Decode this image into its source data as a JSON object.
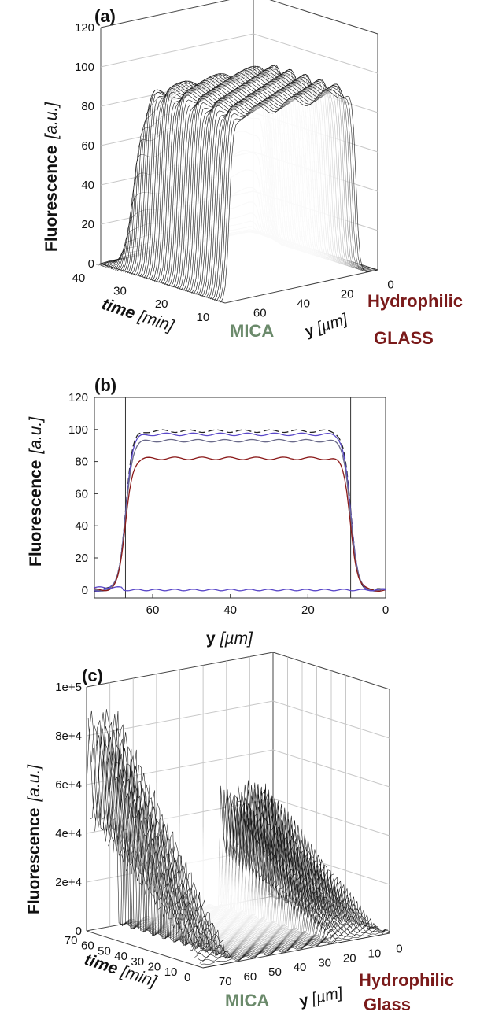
{
  "colors": {
    "glass": "#7a1a1a",
    "mica": "#6b8a6b",
    "ink": "#111111",
    "purple": "#5a48c8",
    "grid": "#b8b8b8"
  },
  "chart_data": [
    {
      "panel_label": "(a)",
      "type": "surface",
      "ylabel": "Fluorescence",
      "ylabel_unit": "[a.u.]",
      "xlabel": "time",
      "xlabel_unit": "[min]",
      "zlabel": "y",
      "zlabel_unit": "[µm]",
      "fluorescence_ticks": [
        "120",
        "100",
        "80",
        "60",
        "40",
        "20",
        "0"
      ],
      "time_ticks": [
        "40",
        "30",
        "20",
        "10"
      ],
      "y_ticks": [
        "60",
        "40",
        "20",
        "0"
      ],
      "ylim": [
        0,
        120
      ],
      "plateau_fluorescence": 97,
      "plateau_y_range_um": [
        10,
        68
      ],
      "side_labels": {
        "left": "MICA",
        "right_1": "Hydrophilic",
        "right_2": "GLASS"
      }
    },
    {
      "panel_label": "(b)",
      "type": "line",
      "ylabel": "Fluorescence",
      "ylabel_unit": "[a.u.]",
      "xlabel": "y",
      "xlabel_unit": "[µm]",
      "x_ticks": [
        "60",
        "40",
        "20",
        "0"
      ],
      "y_ticks": [
        "120",
        "100",
        "80",
        "60",
        "40",
        "20",
        "0"
      ],
      "xlim": [
        75,
        0
      ],
      "ylim": [
        -5,
        120
      ],
      "edges_um": [
        67,
        9
      ],
      "series": [
        {
          "color": "#222222",
          "dashed": true,
          "plateau": 99
        },
        {
          "color": "#5a48c8",
          "dashed": false,
          "plateau": 97
        },
        {
          "color": "#6a6a8a",
          "dashed": false,
          "plateau": 93
        },
        {
          "color": "#8b1a1a",
          "dashed": false,
          "plateau": 82
        },
        {
          "color": "#5a48c8",
          "dashed": false,
          "plateau": 0
        }
      ]
    },
    {
      "panel_label": "(c)",
      "type": "surface",
      "ylabel": "Fluorescence",
      "ylabel_unit": "[a.u.]",
      "xlabel": "time",
      "xlabel_unit": "[min]",
      "zlabel": "y",
      "zlabel_unit": "[µm]",
      "fluorescence_ticks": [
        "1e+5",
        "8e+4",
        "6e+4",
        "4e+4",
        "2e+4",
        "0"
      ],
      "time_ticks": [
        "70",
        "60",
        "50",
        "40",
        "30",
        "20",
        "10",
        "0"
      ],
      "y_ticks": [
        "70",
        "60",
        "50",
        "40",
        "30",
        "20",
        "10",
        "0"
      ],
      "ylim": [
        0,
        100000
      ],
      "peak_fluorescence": 90000,
      "side_labels": {
        "left": "MICA",
        "right_1": "Hydrophilic",
        "right_2": "Glass"
      }
    }
  ]
}
